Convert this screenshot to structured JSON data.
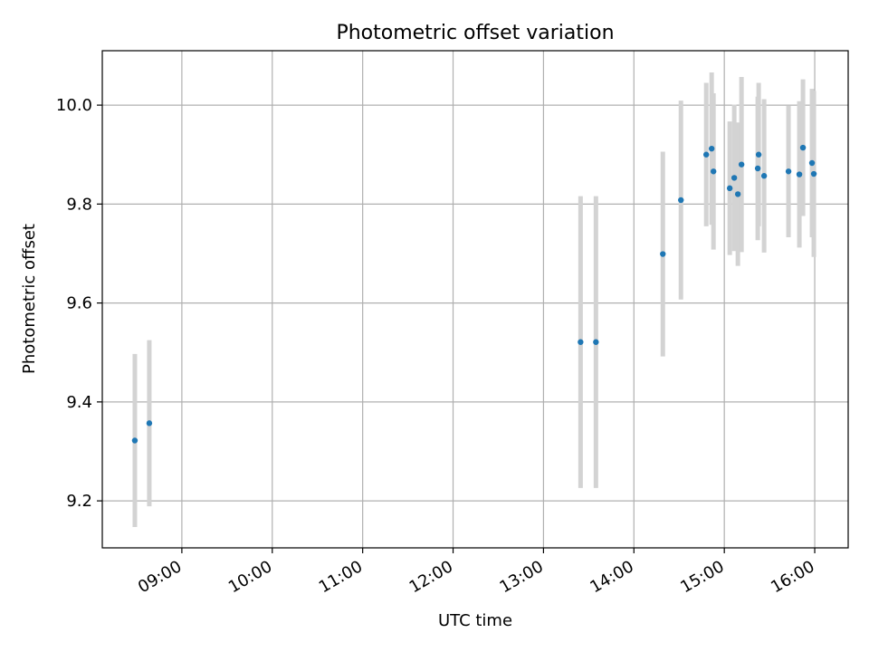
{
  "chart_data": {
    "type": "scatter",
    "title": "Photometric offset variation",
    "xlabel": "UTC time",
    "ylabel": "Photometric offset",
    "grid": true,
    "xlim": [
      8.12,
      16.37
    ],
    "ylim": [
      9.105,
      10.11
    ],
    "x_ticks": [
      {
        "value": 9,
        "label": "09:00"
      },
      {
        "value": 10,
        "label": "10:00"
      },
      {
        "value": 11,
        "label": "11:00"
      },
      {
        "value": 12,
        "label": "12:00"
      },
      {
        "value": 13,
        "label": "13:00"
      },
      {
        "value": 14,
        "label": "14:00"
      },
      {
        "value": 15,
        "label": "15:00"
      },
      {
        "value": 16,
        "label": "16:00"
      }
    ],
    "y_ticks": [
      {
        "value": 9.2,
        "label": "9.2"
      },
      {
        "value": 9.4,
        "label": "9.4"
      },
      {
        "value": 9.6,
        "label": "9.6"
      },
      {
        "value": 9.8,
        "label": "9.8"
      },
      {
        "value": 10.0,
        "label": "10.0"
      }
    ],
    "marker_color": "#1f77b4",
    "errorbar_color": "#d3d3d3",
    "points": [
      {
        "x": 8.48,
        "y": 9.322,
        "err": 0.175
      },
      {
        "x": 8.64,
        "y": 9.357,
        "err": 0.168
      },
      {
        "x": 13.41,
        "y": 9.521,
        "err": 0.295
      },
      {
        "x": 13.58,
        "y": 9.521,
        "err": 0.295
      },
      {
        "x": 14.32,
        "y": 9.699,
        "err": 0.207
      },
      {
        "x": 14.52,
        "y": 9.808,
        "err": 0.201
      },
      {
        "x": 14.8,
        "y": 9.9,
        "err": 0.145
      },
      {
        "x": 14.86,
        "y": 9.912,
        "err": 0.154
      },
      {
        "x": 14.88,
        "y": 9.866,
        "err": 0.158
      },
      {
        "x": 15.06,
        "y": 9.832,
        "err": 0.135
      },
      {
        "x": 15.11,
        "y": 9.853,
        "err": 0.148
      },
      {
        "x": 15.15,
        "y": 9.82,
        "err": 0.145
      },
      {
        "x": 15.19,
        "y": 9.88,
        "err": 0.177
      },
      {
        "x": 15.37,
        "y": 9.872,
        "err": 0.145
      },
      {
        "x": 15.38,
        "y": 9.9,
        "err": 0.145
      },
      {
        "x": 15.44,
        "y": 9.857,
        "err": 0.155
      },
      {
        "x": 15.71,
        "y": 9.866,
        "err": 0.133
      },
      {
        "x": 15.83,
        "y": 9.86,
        "err": 0.148
      },
      {
        "x": 15.87,
        "y": 9.914,
        "err": 0.138
      },
      {
        "x": 15.97,
        "y": 9.883,
        "err": 0.15
      },
      {
        "x": 15.99,
        "y": 9.861,
        "err": 0.168
      }
    ]
  }
}
